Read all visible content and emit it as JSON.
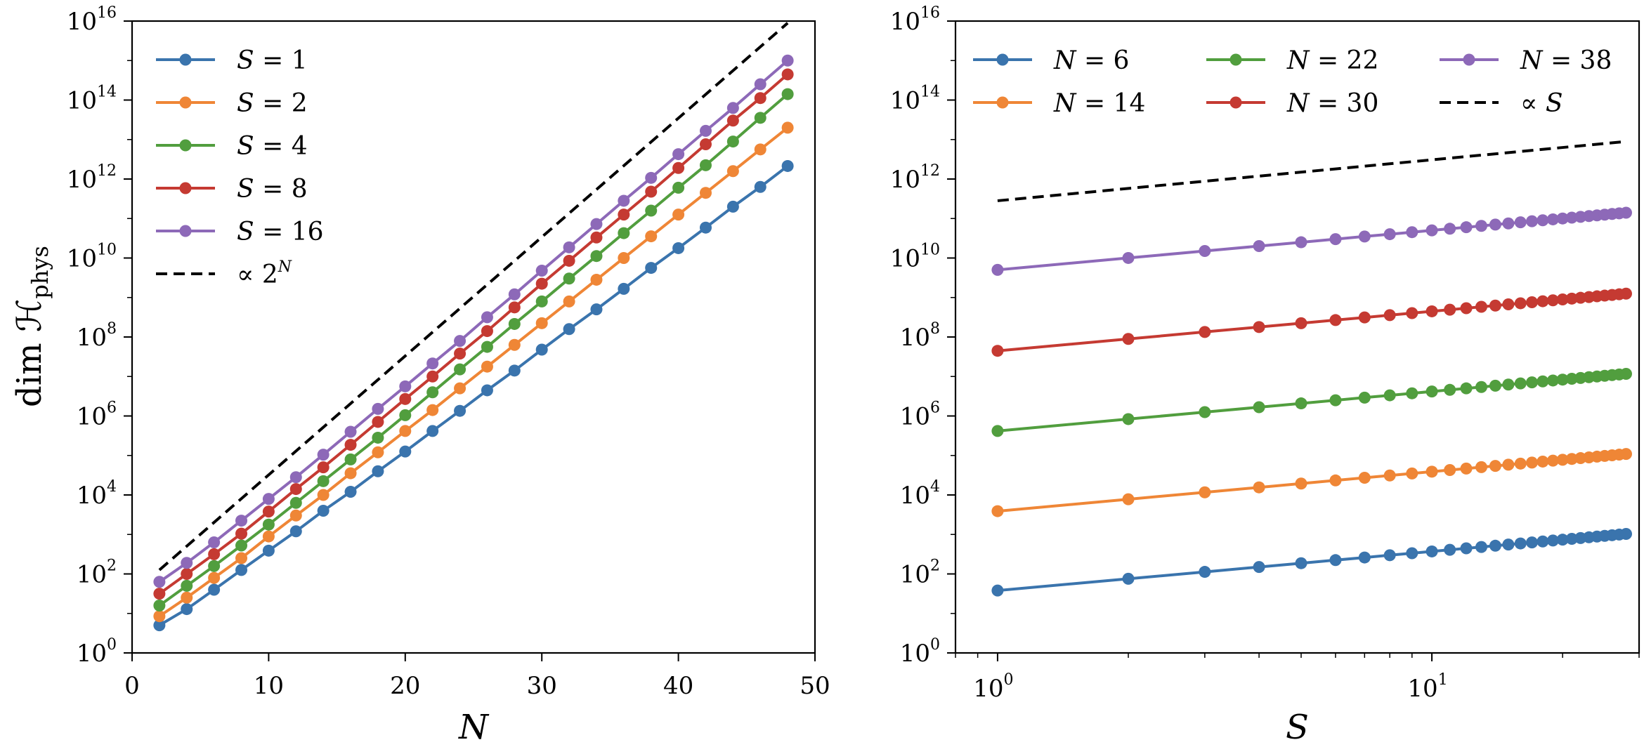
{
  "figure": {
    "ylabel": "dim ℋ",
    "ylabel_sub": "phys"
  },
  "chart_data": [
    {
      "type": "line",
      "x_scale": "linear",
      "y_scale": "log",
      "xlabel": "N",
      "ylabel": "dim ℋphys",
      "xlim": [
        0,
        50
      ],
      "ylim": [
        1,
        1e+16
      ],
      "xticks": [
        0,
        10,
        20,
        30,
        40,
        50
      ],
      "x_tick_labels": [
        "0",
        "10",
        "20",
        "30",
        "40",
        "50"
      ],
      "yticks": [
        1,
        100,
        10000,
        1000000,
        100000000,
        10000000000,
        1000000000000,
        100000000000000,
        10000000000000000
      ],
      "y_tick_labels": [
        {
          "base": "10",
          "exp": "0"
        },
        {
          "base": "10",
          "exp": "2"
        },
        {
          "base": "10",
          "exp": "4"
        },
        {
          "base": "10",
          "exp": "6"
        },
        {
          "base": "10",
          "exp": "8"
        },
        {
          "base": "10",
          "exp": "10"
        },
        {
          "base": "10",
          "exp": "12"
        },
        {
          "base": "10",
          "exp": "14"
        },
        {
          "base": "10",
          "exp": "16"
        }
      ],
      "legend_position": "upper-left",
      "x": [
        2,
        4,
        6,
        8,
        10,
        12,
        14,
        16,
        18,
        20,
        22,
        24,
        26,
        28,
        30,
        32,
        34,
        36,
        38,
        40,
        42,
        44,
        46,
        48
      ],
      "series": [
        {
          "name": "S = 1",
          "var": "S",
          "val": "1",
          "color": "#3a74ad",
          "log10_values": [
            0.7,
            1.11,
            1.6,
            2.1,
            2.59,
            3.08,
            3.6,
            4.08,
            4.6,
            5.1,
            5.62,
            6.13,
            6.65,
            7.15,
            7.68,
            8.2,
            8.7,
            9.22,
            9.75,
            10.25,
            10.77,
            11.3,
            11.8,
            12.33
          ]
        },
        {
          "name": "S = 2",
          "var": "S",
          "val": "2",
          "color": "#ef8636",
          "log10_values": [
            0.93,
            1.4,
            1.9,
            2.4,
            2.95,
            3.48,
            4.0,
            4.55,
            5.08,
            5.62,
            6.15,
            6.7,
            7.25,
            7.8,
            8.35,
            8.9,
            9.45,
            10.0,
            10.55,
            11.1,
            11.65,
            12.2,
            12.75,
            13.3
          ]
        },
        {
          "name": "S = 4",
          "var": "S",
          "val": "4",
          "color": "#519e3e",
          "log10_values": [
            1.2,
            1.7,
            2.2,
            2.72,
            3.25,
            3.8,
            4.35,
            4.9,
            5.45,
            6.02,
            6.6,
            7.18,
            7.75,
            8.33,
            8.9,
            9.48,
            10.05,
            10.63,
            11.2,
            11.78,
            12.35,
            12.95,
            13.55,
            14.15
          ]
        },
        {
          "name": "S = 8",
          "var": "S",
          "val": "8",
          "color": "#c53a32",
          "log10_values": [
            1.5,
            2.0,
            2.5,
            3.02,
            3.58,
            4.15,
            4.7,
            5.27,
            5.85,
            6.43,
            7.0,
            7.58,
            8.15,
            8.75,
            9.35,
            9.93,
            10.52,
            11.1,
            11.68,
            12.28,
            12.88,
            13.48,
            14.05,
            14.65
          ]
        },
        {
          "name": "S = 16",
          "var": "S",
          "val": "16",
          "color": "#8d69b8",
          "log10_values": [
            1.8,
            2.28,
            2.8,
            3.35,
            3.9,
            4.45,
            5.02,
            5.6,
            6.18,
            6.75,
            7.33,
            7.9,
            8.5,
            9.08,
            9.68,
            10.27,
            10.86,
            11.45,
            12.03,
            12.63,
            13.22,
            13.8,
            14.4,
            15.0
          ]
        }
      ],
      "reference_line": {
        "label": "∝ 2",
        "label_sup": "N",
        "color": "#000000",
        "style": "dashed",
        "x": [
          2,
          48
        ],
        "log10_values": [
          2.1,
          15.95
        ]
      }
    },
    {
      "type": "line",
      "x_scale": "log",
      "y_scale": "log",
      "xlabel": "S",
      "ylabel": "",
      "xlim": [
        0.8,
        30
      ],
      "ylim": [
        1,
        1e+16
      ],
      "xticks": [
        1,
        10
      ],
      "x_tick_labels": [
        {
          "base": "10",
          "exp": "0"
        },
        {
          "base": "10",
          "exp": "1"
        }
      ],
      "yticks": [
        1,
        100,
        10000,
        1000000,
        100000000,
        10000000000,
        1000000000000,
        100000000000000,
        10000000000000000
      ],
      "y_tick_labels": [
        {
          "base": "10",
          "exp": "0"
        },
        {
          "base": "10",
          "exp": "2"
        },
        {
          "base": "10",
          "exp": "4"
        },
        {
          "base": "10",
          "exp": "6"
        },
        {
          "base": "10",
          "exp": "8"
        },
        {
          "base": "10",
          "exp": "10"
        },
        {
          "base": "10",
          "exp": "12"
        },
        {
          "base": "10",
          "exp": "14"
        },
        {
          "base": "10",
          "exp": "16"
        }
      ],
      "legend_position": "top (3 columns)",
      "x": [
        1,
        2,
        3,
        4,
        5,
        6,
        7,
        8,
        9,
        10,
        11,
        12,
        13,
        14,
        15,
        16,
        17,
        18,
        19,
        20,
        21,
        22,
        23,
        24,
        25,
        26,
        27,
        28
      ],
      "series": [
        {
          "name": "N = 6",
          "var": "N",
          "val": "6",
          "color": "#3a74ad",
          "log10_at_S1": 1.58,
          "slope": 0.99
        },
        {
          "name": "N = 14",
          "var": "N",
          "val": "14",
          "color": "#ef8636",
          "log10_at_S1": 3.59,
          "slope": 1.0
        },
        {
          "name": "N = 22",
          "var": "N",
          "val": "22",
          "color": "#519e3e",
          "log10_at_S1": 5.62,
          "slope": 1.0
        },
        {
          "name": "N = 30",
          "var": "N",
          "val": "30",
          "color": "#c53a32",
          "log10_at_S1": 7.65,
          "slope": 1.0
        },
        {
          "name": "N = 38",
          "var": "N",
          "val": "38",
          "color": "#8d69b8",
          "log10_at_S1": 9.7,
          "slope": 1.0
        }
      ],
      "reference_line": {
        "label": "∝ S",
        "label_sup": "",
        "color": "#000000",
        "style": "dashed",
        "x": [
          1,
          28
        ],
        "log10_values": [
          11.45,
          12.95
        ]
      }
    }
  ]
}
